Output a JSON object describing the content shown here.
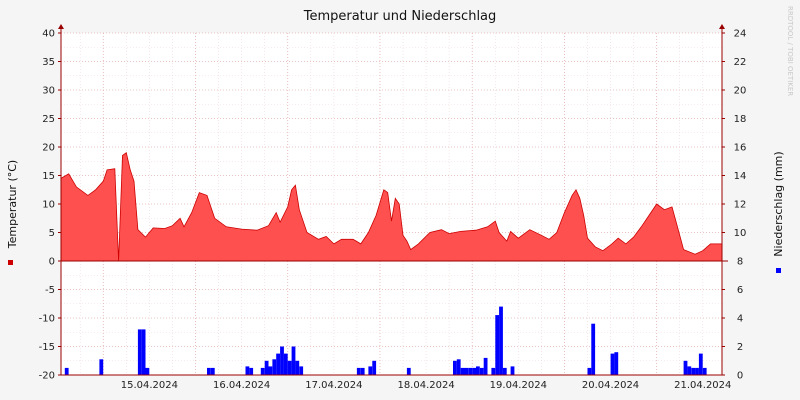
{
  "colors": {
    "background": "#f5f5f5",
    "plot_background": "#ffffff",
    "temperature": "#ff5050",
    "temperature_line": "#cc0000",
    "precipitation": "#0000ff",
    "grid": "#e4b0b0",
    "axis": "#9a0000"
  },
  "chart_data": {
    "type": "area",
    "title": "Temperatur und Niederschlag",
    "watermark": "RRDTOOL / TOBI OETIKER",
    "ylabel_left": "Temperatur (°C)",
    "ylabel_right": "Niederschlag (mm)",
    "ylim_left": [
      -20,
      40
    ],
    "ylim_right": [
      0,
      24
    ],
    "yticks_left": [
      40,
      35,
      30,
      25,
      20,
      15,
      10,
      5,
      0,
      -5,
      -10,
      -15,
      -20
    ],
    "yticks_right": [
      24,
      22,
      20,
      18,
      16,
      14,
      12,
      10,
      8,
      6,
      4,
      2,
      0
    ],
    "xlim": [
      "2024-04-14T13:00",
      "2024-04-21T17:00"
    ],
    "x_tick_labels": [
      "15.04.2024",
      "16.04.2024",
      "17.04.2024",
      "18.04.2024",
      "19.04.2024",
      "20.04.2024",
      "21.04.2024"
    ],
    "x_tick_dates": [
      "2024-04-15T00:00",
      "2024-04-16T00:00",
      "2024-04-17T00:00",
      "2024-04-18T00:00",
      "2024-04-19T00:00",
      "2024-04-20T00:00",
      "2024-04-21T00:00"
    ],
    "grid": true,
    "legend": "left-and-right-markers",
    "series": [
      {
        "name": "Temperatur (°C)",
        "axis": "left",
        "type": "area",
        "points": [
          [
            "2024-04-14T13:00",
            14.5
          ],
          [
            "2024-04-14T15:00",
            15.3
          ],
          [
            "2024-04-14T17:00",
            13.0
          ],
          [
            "2024-04-14T20:00",
            11.5
          ],
          [
            "2024-04-14T22:00",
            12.5
          ],
          [
            "2024-04-15T00:00",
            14.0
          ],
          [
            "2024-04-15T01:00",
            16.0
          ],
          [
            "2024-04-15T03:00",
            16.2
          ],
          [
            "2024-04-15T04:00",
            0.0
          ],
          [
            "2024-04-15T05:00",
            18.5
          ],
          [
            "2024-04-15T06:00",
            19.0
          ],
          [
            "2024-04-15T07:00",
            16.0
          ],
          [
            "2024-04-15T08:00",
            14.0
          ],
          [
            "2024-04-15T09:00",
            5.5
          ],
          [
            "2024-04-15T11:00",
            4.2
          ],
          [
            "2024-04-15T13:00",
            5.8
          ],
          [
            "2024-04-15T16:00",
            5.7
          ],
          [
            "2024-04-15T18:00",
            6.2
          ],
          [
            "2024-04-15T20:00",
            7.5
          ],
          [
            "2024-04-15T21:00",
            6.0
          ],
          [
            "2024-04-15T23:00",
            8.5
          ],
          [
            "2024-04-16T01:00",
            12.0
          ],
          [
            "2024-04-16T03:00",
            11.5
          ],
          [
            "2024-04-16T05:00",
            7.5
          ],
          [
            "2024-04-16T08:00",
            6.0
          ],
          [
            "2024-04-16T12:00",
            5.6
          ],
          [
            "2024-04-16T16:00",
            5.4
          ],
          [
            "2024-04-16T19:00",
            6.2
          ],
          [
            "2024-04-16T21:00",
            8.5
          ],
          [
            "2024-04-16T22:00",
            6.8
          ],
          [
            "2024-04-17T00:00",
            9.5
          ],
          [
            "2024-04-17T01:00",
            12.5
          ],
          [
            "2024-04-17T02:00",
            13.3
          ],
          [
            "2024-04-17T03:00",
            9.0
          ],
          [
            "2024-04-17T05:00",
            5.0
          ],
          [
            "2024-04-17T08:00",
            3.8
          ],
          [
            "2024-04-17T10:00",
            4.3
          ],
          [
            "2024-04-17T12:00",
            3.0
          ],
          [
            "2024-04-17T14:00",
            3.8
          ],
          [
            "2024-04-17T17:00",
            3.8
          ],
          [
            "2024-04-17T19:00",
            3.0
          ],
          [
            "2024-04-17T21:00",
            5.0
          ],
          [
            "2024-04-17T23:00",
            8.0
          ],
          [
            "2024-04-18T01:00",
            12.5
          ],
          [
            "2024-04-18T02:00",
            12.0
          ],
          [
            "2024-04-18T03:00",
            7.0
          ],
          [
            "2024-04-18T04:00",
            11.0
          ],
          [
            "2024-04-18T05:00",
            10.0
          ],
          [
            "2024-04-18T06:00",
            4.5
          ],
          [
            "2024-04-18T07:00",
            3.5
          ],
          [
            "2024-04-18T08:00",
            2.0
          ],
          [
            "2024-04-18T10:00",
            3.0
          ],
          [
            "2024-04-18T13:00",
            5.0
          ],
          [
            "2024-04-18T16:00",
            5.5
          ],
          [
            "2024-04-18T18:00",
            4.8
          ],
          [
            "2024-04-18T21:00",
            5.2
          ],
          [
            "2024-04-19T01:00",
            5.4
          ],
          [
            "2024-04-19T04:00",
            6.0
          ],
          [
            "2024-04-19T06:00",
            7.0
          ],
          [
            "2024-04-19T07:00",
            5.0
          ],
          [
            "2024-04-19T09:00",
            3.5
          ],
          [
            "2024-04-19T10:00",
            5.2
          ],
          [
            "2024-04-19T12:00",
            4.0
          ],
          [
            "2024-04-19T15:00",
            5.5
          ],
          [
            "2024-04-19T18:00",
            4.5
          ],
          [
            "2024-04-19T20:00",
            3.8
          ],
          [
            "2024-04-19T22:00",
            5.0
          ],
          [
            "2024-04-20T00:00",
            8.5
          ],
          [
            "2024-04-20T02:00",
            11.5
          ],
          [
            "2024-04-20T03:00",
            12.5
          ],
          [
            "2024-04-20T04:00",
            11.0
          ],
          [
            "2024-04-20T05:00",
            8.0
          ],
          [
            "2024-04-20T06:00",
            4.0
          ],
          [
            "2024-04-20T08:00",
            2.5
          ],
          [
            "2024-04-20T10:00",
            1.8
          ],
          [
            "2024-04-20T12:00",
            2.8
          ],
          [
            "2024-04-20T14:00",
            4.0
          ],
          [
            "2024-04-20T16:00",
            3.0
          ],
          [
            "2024-04-20T18:00",
            4.2
          ],
          [
            "2024-04-20T20:00",
            6.0
          ],
          [
            "2024-04-20T22:00",
            8.0
          ],
          [
            "2024-04-21T00:00",
            10.0
          ],
          [
            "2024-04-21T02:00",
            9.0
          ],
          [
            "2024-04-21T04:00",
            9.5
          ],
          [
            "2024-04-21T05:00",
            7.0
          ],
          [
            "2024-04-21T07:00",
            2.0
          ],
          [
            "2024-04-21T10:00",
            1.2
          ],
          [
            "2024-04-21T12:00",
            1.8
          ],
          [
            "2024-04-21T14:00",
            3.0
          ],
          [
            "2024-04-21T17:00",
            3.0
          ]
        ]
      },
      {
        "name": "Niederschlag (mm)",
        "axis": "right",
        "type": "bar",
        "bar_hours": 1,
        "points": [
          [
            "2024-04-14T14:00",
            0.5
          ],
          [
            "2024-04-14T23:00",
            1.1
          ],
          [
            "2024-04-15T09:00",
            3.2
          ],
          [
            "2024-04-15T10:00",
            3.2
          ],
          [
            "2024-04-15T11:00",
            0.5
          ],
          [
            "2024-04-16T03:00",
            0.5
          ],
          [
            "2024-04-16T04:00",
            0.5
          ],
          [
            "2024-04-16T13:00",
            0.6
          ],
          [
            "2024-04-16T14:00",
            0.5
          ],
          [
            "2024-04-16T17:00",
            0.5
          ],
          [
            "2024-04-16T18:00",
            1.0
          ],
          [
            "2024-04-16T19:00",
            0.6
          ],
          [
            "2024-04-16T20:00",
            1.1
          ],
          [
            "2024-04-16T21:00",
            1.5
          ],
          [
            "2024-04-16T22:00",
            2.0
          ],
          [
            "2024-04-16T23:00",
            1.5
          ],
          [
            "2024-04-17T00:00",
            1.0
          ],
          [
            "2024-04-17T01:00",
            2.0
          ],
          [
            "2024-04-17T02:00",
            1.0
          ],
          [
            "2024-04-17T03:00",
            0.6
          ],
          [
            "2024-04-17T18:00",
            0.5
          ],
          [
            "2024-04-17T19:00",
            0.5
          ],
          [
            "2024-04-17T21:00",
            0.6
          ],
          [
            "2024-04-17T22:00",
            1.0
          ],
          [
            "2024-04-18T07:00",
            0.5
          ],
          [
            "2024-04-18T19:00",
            1.0
          ],
          [
            "2024-04-18T20:00",
            1.1
          ],
          [
            "2024-04-18T21:00",
            0.5
          ],
          [
            "2024-04-18T22:00",
            0.5
          ],
          [
            "2024-04-18T23:00",
            0.5
          ],
          [
            "2024-04-19T00:00",
            0.5
          ],
          [
            "2024-04-19T01:00",
            0.6
          ],
          [
            "2024-04-19T02:00",
            0.5
          ],
          [
            "2024-04-19T03:00",
            1.2
          ],
          [
            "2024-04-19T05:00",
            0.5
          ],
          [
            "2024-04-19T06:00",
            4.2
          ],
          [
            "2024-04-19T07:00",
            4.8
          ],
          [
            "2024-04-19T08:00",
            0.5
          ],
          [
            "2024-04-19T10:00",
            0.6
          ],
          [
            "2024-04-20T06:00",
            0.5
          ],
          [
            "2024-04-20T07:00",
            3.6
          ],
          [
            "2024-04-20T12:00",
            1.5
          ],
          [
            "2024-04-20T13:00",
            1.6
          ],
          [
            "2024-04-21T07:00",
            1.0
          ],
          [
            "2024-04-21T08:00",
            0.6
          ],
          [
            "2024-04-21T09:00",
            0.5
          ],
          [
            "2024-04-21T10:00",
            0.5
          ],
          [
            "2024-04-21T11:00",
            1.5
          ],
          [
            "2024-04-21T12:00",
            0.5
          ]
        ]
      }
    ]
  }
}
